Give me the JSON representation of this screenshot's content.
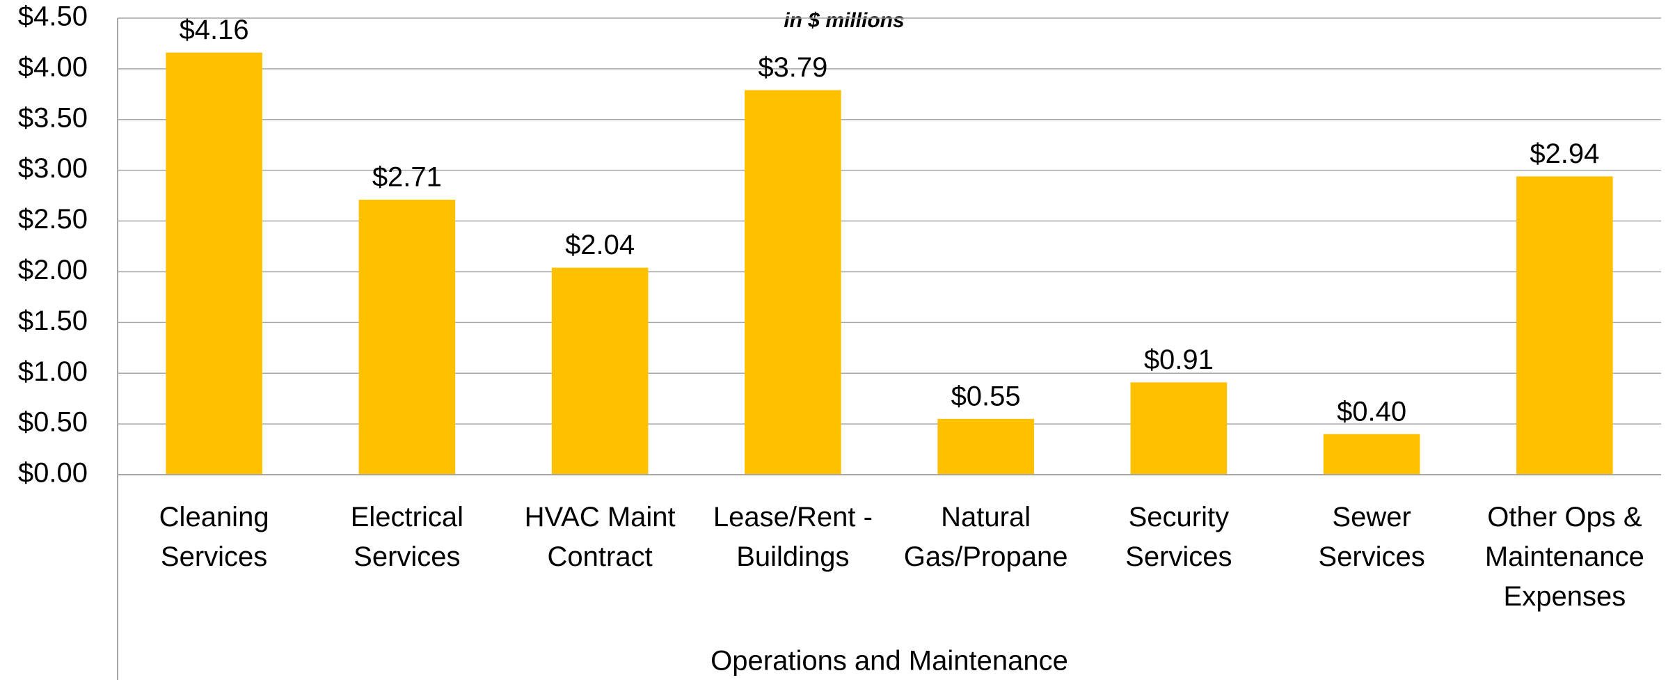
{
  "chart_data": {
    "type": "bar",
    "subtitle": "in $ millions",
    "x_label": "Operations and Maintenance",
    "categories": [
      "Cleaning\nServices",
      "Electrical\nServices",
      "HVAC Maint\nContract",
      "Lease/Rent -\nBuildings",
      "Natural\nGas/Propane",
      "Security\nServices",
      "Sewer\nServices",
      "Other Ops &\nMaintenance\nExpenses"
    ],
    "values": [
      4.16,
      2.71,
      2.04,
      3.79,
      0.55,
      0.91,
      0.4,
      2.94
    ],
    "value_labels": [
      "$4.16",
      "$2.71",
      "$2.04",
      "$3.79",
      "$0.55",
      "$0.91",
      "$0.40",
      "$2.94"
    ],
    "color": "#ffc000",
    "ylim": [
      0,
      4.5
    ],
    "yticks": [
      {
        "value": 0,
        "label": "$0.00"
      },
      {
        "value": 0.5,
        "label": "$0.50"
      },
      {
        "value": 1,
        "label": "$1.00"
      },
      {
        "value": 1.5,
        "label": "$1.50"
      },
      {
        "value": 2,
        "label": "$2.00"
      },
      {
        "value": 2.5,
        "label": "$2.50"
      },
      {
        "value": 3,
        "label": "$3.00"
      },
      {
        "value": 3.5,
        "label": "$3.50"
      },
      {
        "value": 4,
        "label": "$4.00"
      },
      {
        "value": 4.5,
        "label": "$4.50"
      }
    ],
    "grid": true
  }
}
